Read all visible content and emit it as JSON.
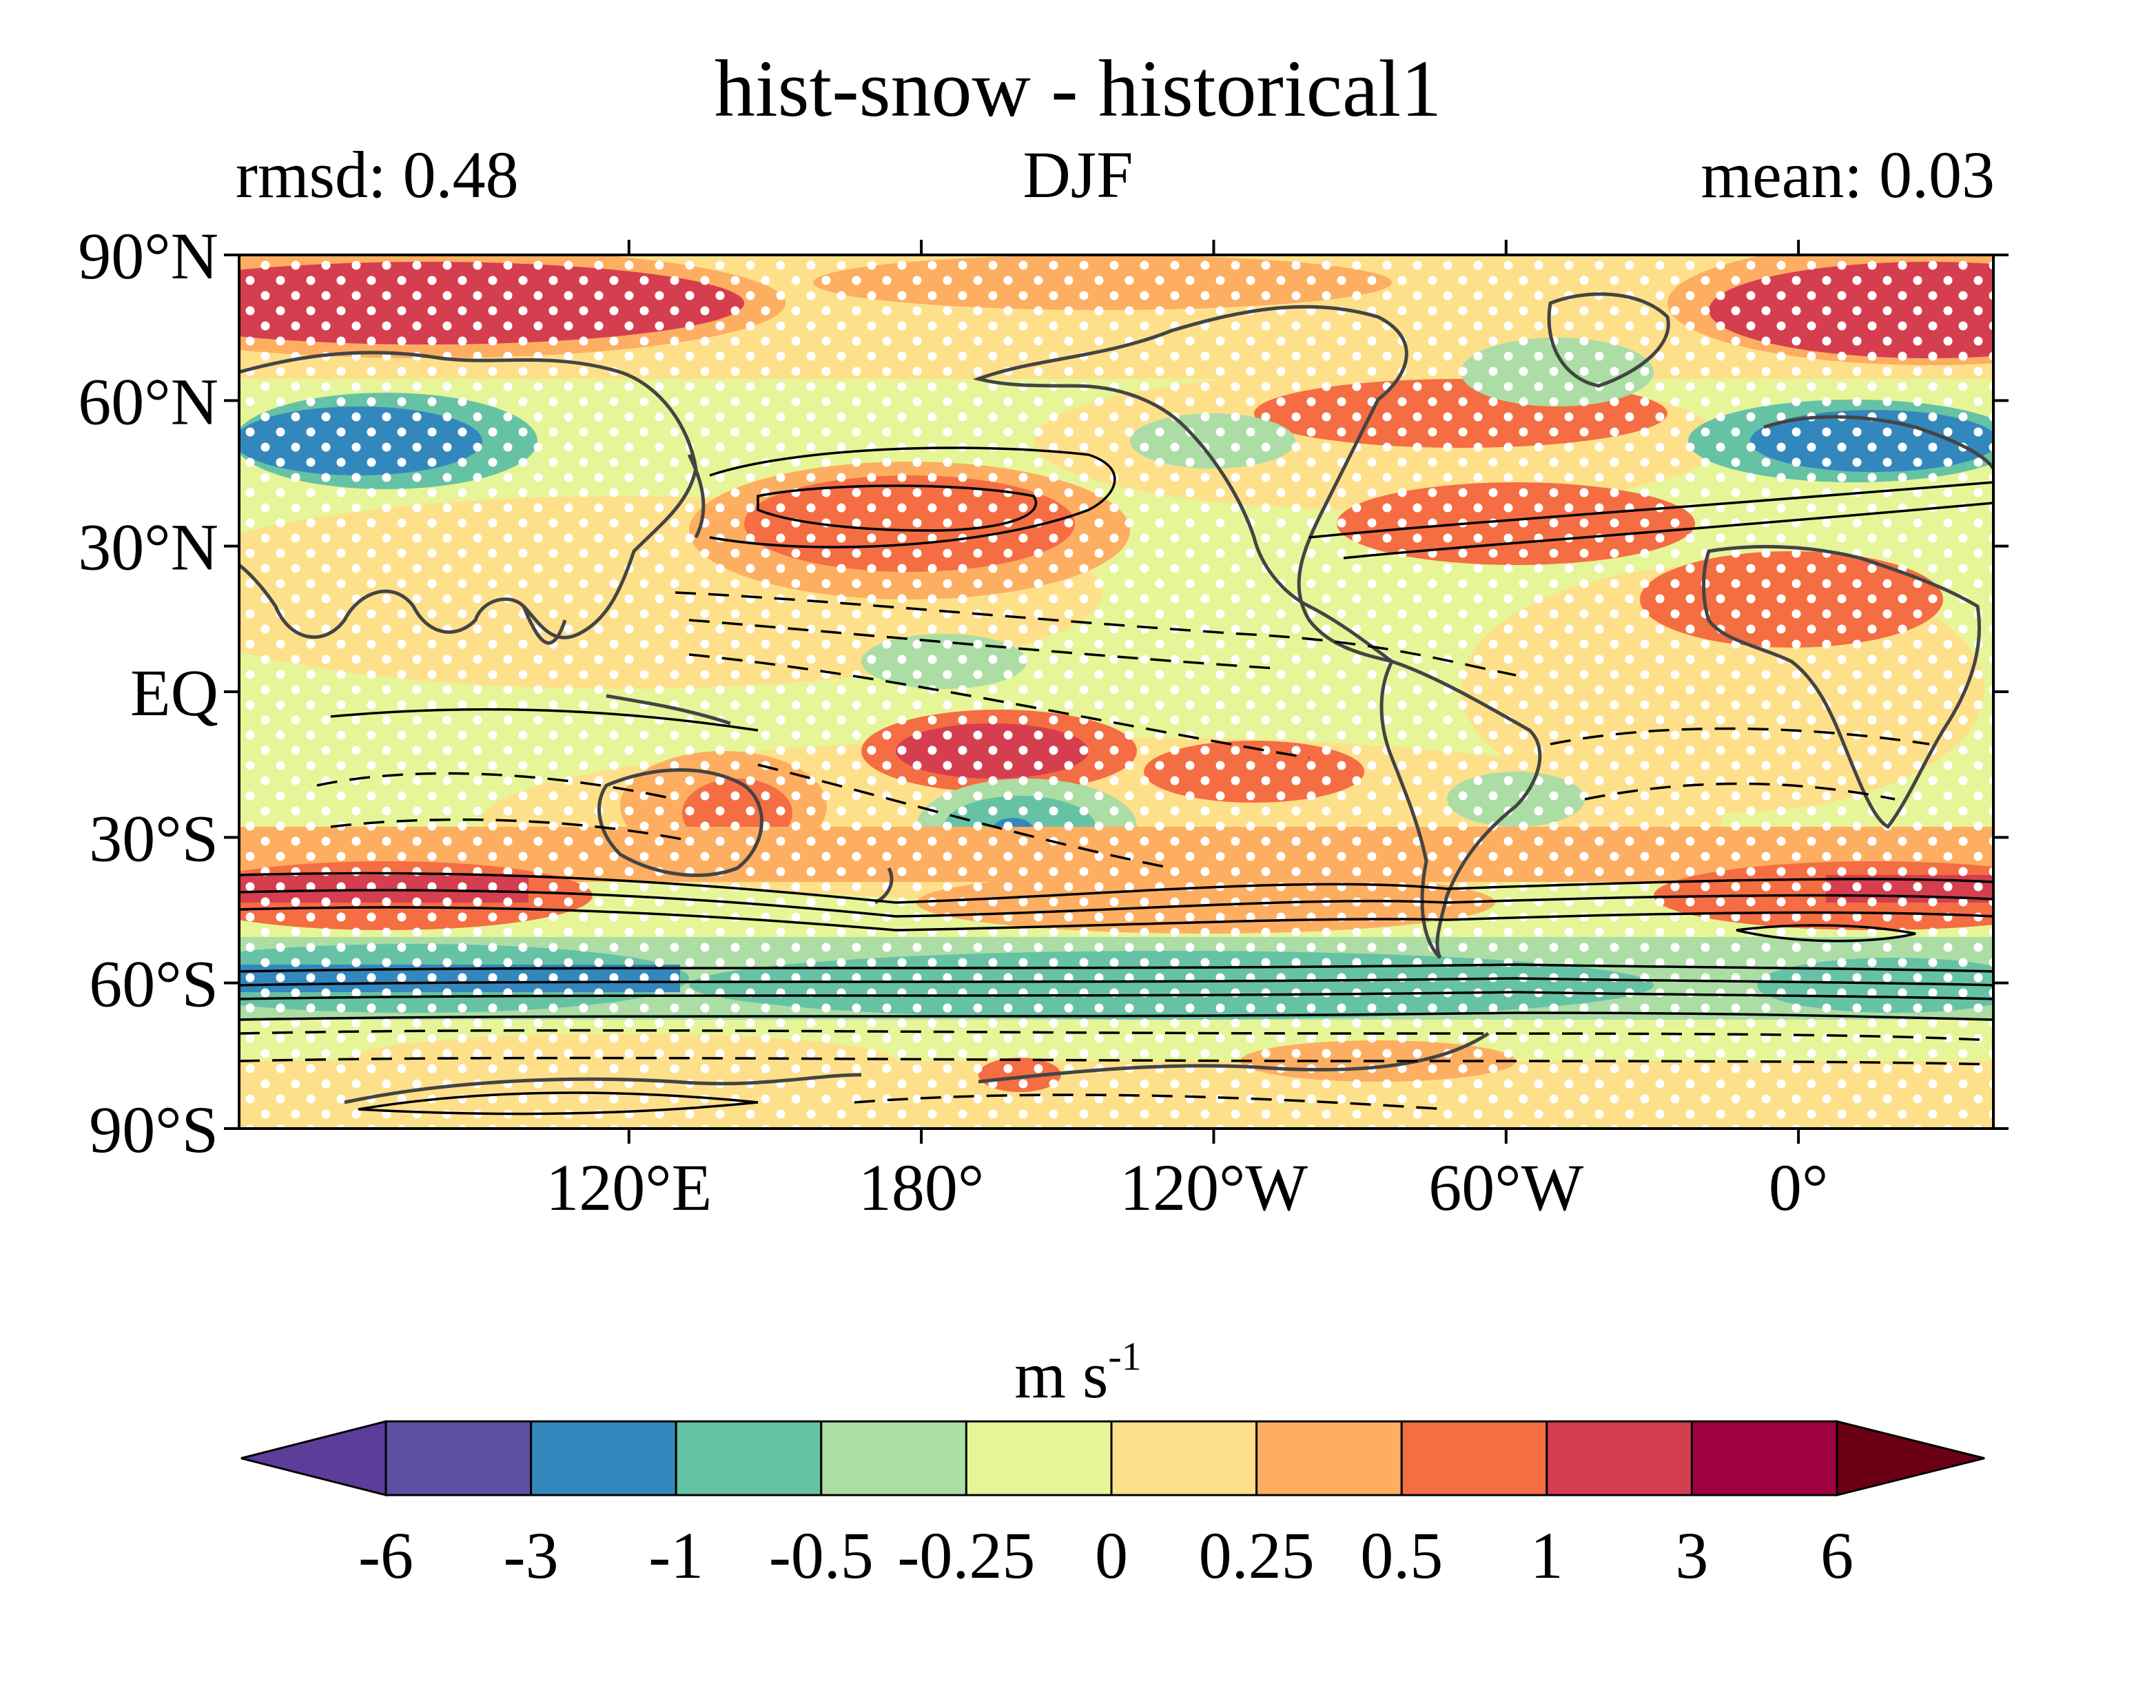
{
  "title": "hist-snow - historical1",
  "left_stat": "rmsd: 0.48",
  "season": "DJF",
  "right_stat": "mean: 0.03",
  "units": {
    "base": "m s",
    "exponent": "-1"
  },
  "lat_ticks": [
    "90°N",
    "60°N",
    "30°N",
    "EQ",
    "30°S",
    "60°S",
    "90°S"
  ],
  "lon_ticks": [
    "120°E",
    "180°",
    "120°W",
    "60°W",
    "0°"
  ],
  "colorbar": {
    "levels": [
      "-6",
      "-3",
      "-1",
      "-0.5",
      "-0.25",
      "0",
      "0.25",
      "0.5",
      "1",
      "3",
      "6"
    ],
    "colors": [
      "#5e3c99",
      "#5e4fa2",
      "#3288bd",
      "#66c2a5",
      "#abdda4",
      "#e6f598",
      "#fee08b",
      "#fdae61",
      "#f46d43",
      "#d53e4f",
      "#9e0142",
      "#6b0015"
    ]
  },
  "colors": {
    "land_outline": "#444444",
    "contour": "#000000",
    "stipple": "#ffffff"
  }
}
